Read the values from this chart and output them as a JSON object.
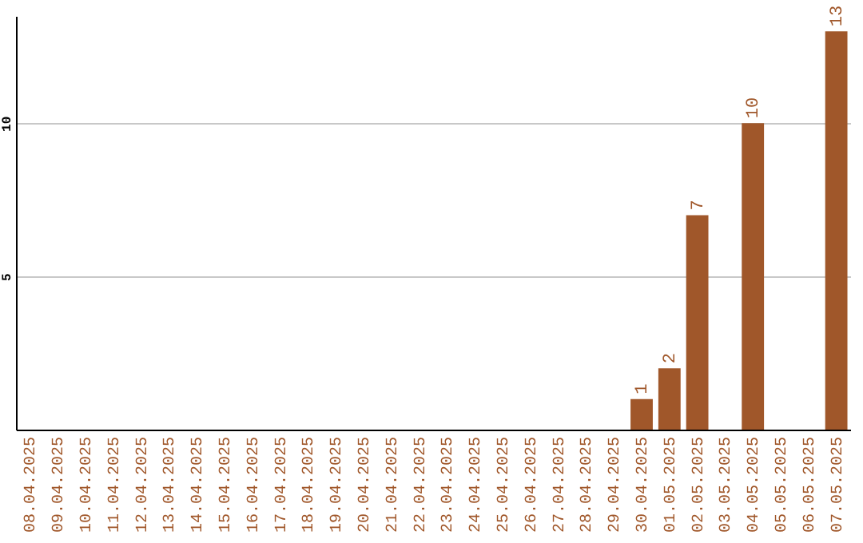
{
  "chart_data": {
    "type": "bar",
    "categories": [
      "08.04.2025",
      "09.04.2025",
      "10.04.2025",
      "11.04.2025",
      "12.04.2025",
      "13.04.2025",
      "14.04.2025",
      "15.04.2025",
      "16.04.2025",
      "17.04.2025",
      "18.04.2025",
      "19.04.2025",
      "20.04.2025",
      "21.04.2025",
      "22.04.2025",
      "23.04.2025",
      "24.04.2025",
      "25.04.2025",
      "26.04.2025",
      "27.04.2025",
      "28.04.2025",
      "29.04.2025",
      "30.04.2025",
      "01.05.2025",
      "02.05.2025",
      "03.05.2025",
      "04.05.2025",
      "05.05.2025",
      "06.05.2025",
      "07.05.2025"
    ],
    "values": [
      null,
      null,
      null,
      null,
      null,
      null,
      null,
      null,
      null,
      null,
      null,
      null,
      null,
      null,
      null,
      null,
      null,
      null,
      null,
      null,
      null,
      null,
      1,
      2,
      7,
      null,
      10,
      null,
      null,
      13
    ],
    "color": "#a0572a",
    "ylim": [
      0,
      13.5
    ],
    "yticks": [
      5,
      10
    ],
    "grid": "y",
    "data_labels": true
  }
}
